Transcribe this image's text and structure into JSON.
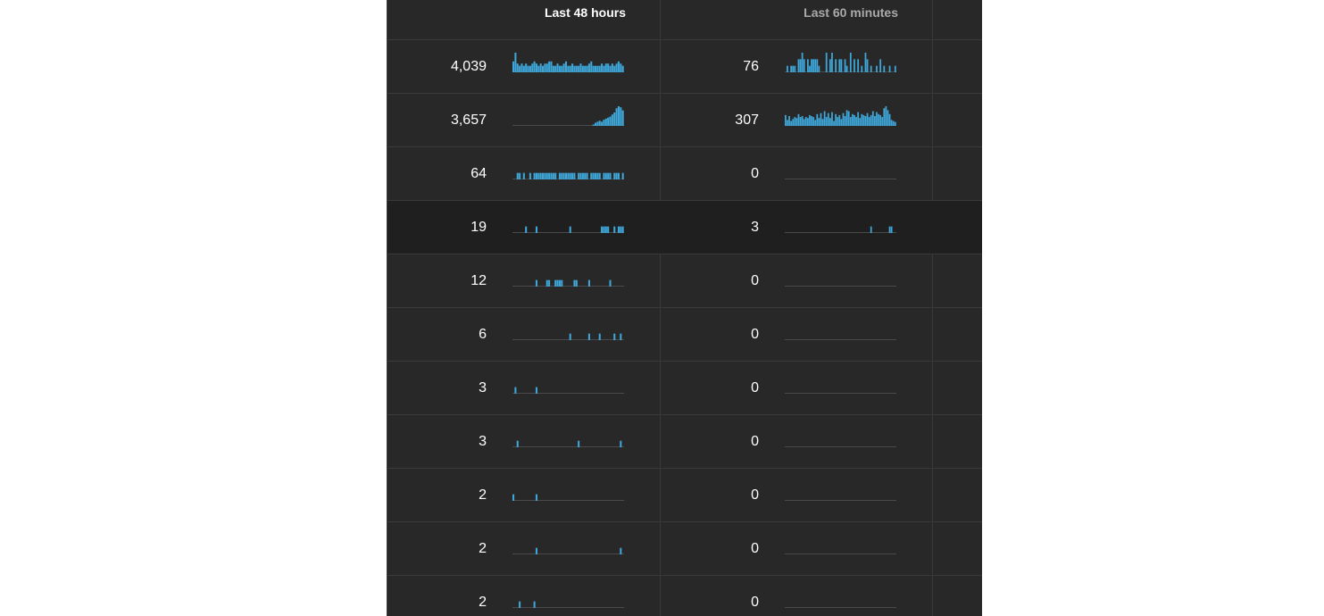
{
  "table": {
    "headers": {
      "col_48h": "Last 48 hours",
      "col_60m": "Last 60 minutes"
    },
    "rows": [
      {
        "h48": "4,039",
        "m60": "76",
        "h48_series": [
          5,
          9,
          4,
          3,
          4,
          3,
          4,
          3,
          3,
          4,
          5,
          4,
          3,
          4,
          3,
          4,
          4,
          5,
          5,
          3,
          3,
          4,
          3,
          3,
          4,
          5,
          3,
          3,
          4,
          3,
          3,
          3,
          4,
          3,
          3,
          3,
          4,
          5,
          3,
          3,
          3,
          3,
          4,
          3,
          4,
          4,
          3,
          4,
          3,
          4,
          5,
          4,
          3
        ],
        "m60_series": [
          0,
          1,
          0,
          1,
          1,
          1,
          0,
          2,
          2,
          3,
          2,
          0,
          2,
          1,
          2,
          2,
          2,
          2,
          1,
          0,
          0,
          0,
          3,
          0,
          2,
          3,
          0,
          2,
          0,
          2,
          2,
          0,
          2,
          1,
          0,
          3,
          0,
          2,
          0,
          2,
          0,
          1,
          0,
          3,
          2,
          0,
          1,
          0,
          0,
          1,
          0,
          2,
          0,
          1,
          0,
          0,
          1,
          0,
          0,
          1
        ]
      },
      {
        "h48": "3,657",
        "m60": "307",
        "h48_series": [
          0,
          0,
          0,
          0,
          0,
          0,
          0,
          0,
          0,
          0,
          0,
          0,
          0,
          0,
          0,
          0,
          0,
          0,
          0,
          0,
          0,
          0,
          0,
          0,
          0,
          0,
          0,
          0,
          0,
          0,
          0,
          0,
          0,
          0,
          0,
          0,
          0,
          0,
          1,
          3,
          4,
          5,
          4,
          6,
          7,
          8,
          9,
          11,
          13,
          17,
          19,
          18,
          15
        ],
        "m60_series": [
          11,
          6,
          10,
          5,
          7,
          9,
          8,
          12,
          9,
          10,
          7,
          9,
          8,
          11,
          10,
          9,
          6,
          12,
          8,
          13,
          7,
          15,
          9,
          13,
          8,
          14,
          5,
          12,
          9,
          11,
          7,
          13,
          10,
          16,
          15,
          9,
          12,
          11,
          9,
          14,
          8,
          12,
          11,
          10,
          13,
          9,
          11,
          15,
          10,
          14,
          12,
          11,
          9,
          18,
          20,
          16,
          12,
          6,
          5,
          4
        ]
      },
      {
        "h48": "64",
        "m60": "0",
        "h48_series": [
          0,
          0,
          1,
          1,
          0,
          1,
          0,
          0,
          1,
          0,
          1,
          1,
          1,
          1,
          1,
          1,
          1,
          1,
          1,
          1,
          1,
          0,
          1,
          1,
          1,
          1,
          1,
          1,
          1,
          1,
          0,
          1,
          1,
          1,
          1,
          1,
          0,
          1,
          1,
          1,
          1,
          1,
          0,
          1,
          1,
          1,
          1,
          0,
          1,
          1,
          1,
          0,
          1
        ],
        "m60_series": []
      },
      {
        "h48": "19",
        "m60": "3",
        "h48_series": [
          0,
          0,
          0,
          0,
          0,
          0,
          1,
          0,
          0,
          0,
          0,
          1,
          0,
          0,
          0,
          0,
          0,
          0,
          0,
          0,
          0,
          0,
          0,
          0,
          0,
          0,
          0,
          1,
          0,
          0,
          0,
          0,
          0,
          0,
          0,
          0,
          0,
          0,
          0,
          0,
          0,
          0,
          1,
          1,
          1,
          1,
          0,
          0,
          1,
          0,
          1,
          1,
          1
        ],
        "m60_series": [
          0,
          0,
          0,
          0,
          0,
          0,
          0,
          0,
          0,
          0,
          0,
          0,
          0,
          0,
          0,
          0,
          0,
          0,
          0,
          0,
          0,
          0,
          0,
          0,
          0,
          0,
          0,
          0,
          0,
          0,
          0,
          0,
          0,
          0,
          0,
          0,
          0,
          0,
          0,
          0,
          0,
          0,
          0,
          0,
          0,
          0,
          1,
          0,
          0,
          0,
          0,
          0,
          0,
          0,
          0,
          0,
          1,
          1,
          0,
          0
        ]
      },
      {
        "h48": "12",
        "m60": "0",
        "h48_series": [
          0,
          0,
          0,
          0,
          0,
          0,
          0,
          0,
          0,
          0,
          0,
          1,
          0,
          0,
          0,
          0,
          1,
          1,
          0,
          0,
          1,
          1,
          1,
          1,
          0,
          0,
          0,
          0,
          0,
          1,
          1,
          0,
          0,
          0,
          0,
          0,
          1,
          0,
          0,
          0,
          0,
          0,
          0,
          0,
          0,
          0,
          1,
          0,
          0,
          0,
          0,
          0,
          0
        ],
        "m60_series": []
      },
      {
        "h48": "6",
        "m60": "0",
        "h48_series": [
          0,
          0,
          0,
          0,
          0,
          0,
          0,
          0,
          0,
          0,
          0,
          0,
          0,
          0,
          0,
          0,
          0,
          0,
          0,
          0,
          0,
          0,
          0,
          0,
          0,
          0,
          0,
          1,
          0,
          0,
          0,
          0,
          0,
          0,
          0,
          0,
          1,
          0,
          0,
          0,
          0,
          1,
          0,
          0,
          0,
          0,
          0,
          0,
          1,
          0,
          0,
          1,
          0
        ],
        "m60_series": []
      },
      {
        "h48": "3",
        "m60": "0",
        "h48_series": [
          0,
          1,
          0,
          0,
          0,
          0,
          0,
          0,
          0,
          0,
          0,
          1,
          0,
          0,
          0,
          0,
          0,
          0,
          0,
          0,
          0,
          0,
          0,
          0,
          0,
          0,
          0,
          0,
          0,
          0,
          0,
          0,
          0,
          0,
          0,
          0,
          0,
          0,
          0,
          0,
          0,
          0,
          0,
          0,
          0,
          0,
          0,
          0,
          0,
          0,
          0,
          0,
          0
        ],
        "m60_series": []
      },
      {
        "h48": "3",
        "m60": "0",
        "h48_series": [
          0,
          0,
          1,
          0,
          0,
          0,
          0,
          0,
          0,
          0,
          0,
          0,
          0,
          0,
          0,
          0,
          0,
          0,
          0,
          0,
          0,
          0,
          0,
          0,
          0,
          0,
          0,
          0,
          0,
          0,
          0,
          1,
          0,
          0,
          0,
          0,
          0,
          0,
          0,
          0,
          0,
          0,
          0,
          0,
          0,
          0,
          0,
          0,
          0,
          0,
          0,
          1,
          0
        ],
        "m60_series": []
      },
      {
        "h48": "2",
        "m60": "0",
        "h48_series": [
          1,
          0,
          0,
          0,
          0,
          0,
          0,
          0,
          0,
          0,
          0,
          1,
          0,
          0,
          0,
          0,
          0,
          0,
          0,
          0,
          0,
          0,
          0,
          0,
          0,
          0,
          0,
          0,
          0,
          0,
          0,
          0,
          0,
          0,
          0,
          0,
          0,
          0,
          0,
          0,
          0,
          0,
          0,
          0,
          0,
          0,
          0,
          0,
          0,
          0,
          0,
          0,
          0
        ],
        "m60_series": []
      },
      {
        "h48": "2",
        "m60": "0",
        "h48_series": [
          0,
          0,
          0,
          0,
          0,
          0,
          0,
          0,
          0,
          0,
          0,
          1,
          0,
          0,
          0,
          0,
          0,
          0,
          0,
          0,
          0,
          0,
          0,
          0,
          0,
          0,
          0,
          0,
          0,
          0,
          0,
          0,
          0,
          0,
          0,
          0,
          0,
          0,
          0,
          0,
          0,
          0,
          0,
          0,
          0,
          0,
          0,
          0,
          0,
          0,
          0,
          1,
          0
        ],
        "m60_series": []
      },
      {
        "h48": "2",
        "m60": "0",
        "h48_series": [
          0,
          0,
          0,
          1,
          0,
          0,
          0,
          0,
          0,
          0,
          1,
          0,
          0,
          0,
          0,
          0,
          0,
          0,
          0,
          0,
          0,
          0,
          0,
          0,
          0,
          0,
          0,
          0,
          0,
          0,
          0,
          0,
          0,
          0,
          0,
          0,
          0,
          0,
          0,
          0,
          0,
          0,
          0,
          0,
          0,
          0,
          0,
          0,
          0,
          0,
          0,
          0,
          0
        ],
        "m60_series": []
      }
    ]
  },
  "colors": {
    "bar": "#3ea6d8",
    "baseline": "#4a4a4a"
  }
}
